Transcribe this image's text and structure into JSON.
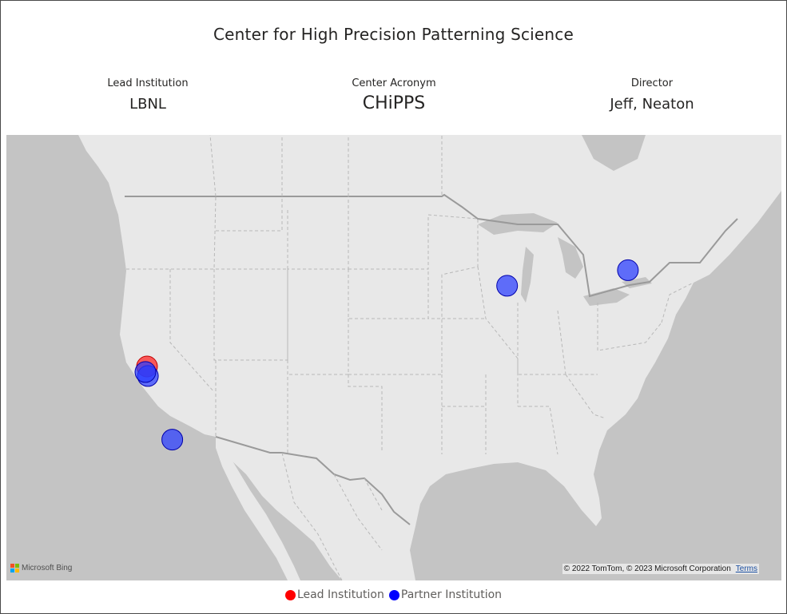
{
  "title": "Center for High Precision Patterning Science",
  "cards": {
    "lead": {
      "label": "Lead Institution",
      "value": "LBNL"
    },
    "acronym": {
      "label": "Center Acronym",
      "value": "CHiPPS"
    },
    "director": {
      "label": "Director",
      "value": "Jeff, Neaton"
    }
  },
  "map": {
    "attribution_logo_text": "Microsoft Bing",
    "copyright": "© 2022 TomTom, © 2023 Microsoft Corporation",
    "terms_link": "Terms",
    "logo_colors": [
      "#f25022",
      "#7fba00",
      "#00a4ef",
      "#ffb900"
    ],
    "markers": [
      {
        "type": "lead",
        "lat": 37.88,
        "lon": -122.25
      },
      {
        "type": "partner",
        "lat": 37.43,
        "lon": -122.17
      },
      {
        "type": "partner",
        "lat": 37.62,
        "lon": -122.4
      },
      {
        "type": "partner",
        "lat": 34.41,
        "lon": -119.85
      },
      {
        "type": "partner",
        "lat": 41.71,
        "lon": -87.98
      },
      {
        "type": "partner",
        "lat": 42.45,
        "lon": -76.48
      }
    ]
  },
  "legend": {
    "items": [
      {
        "label": "Lead Institution",
        "color": "#ff0000",
        "key": "lead"
      },
      {
        "label": "Partner Institution",
        "color": "#0000ff",
        "key": "partner"
      }
    ]
  }
}
